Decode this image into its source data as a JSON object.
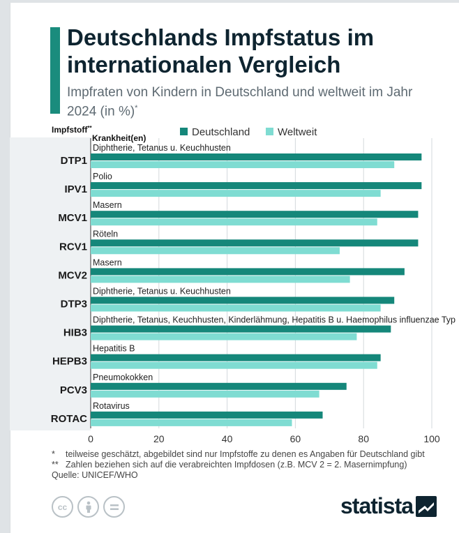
{
  "title": "Deutschlands Impfstatus im internationalen Vergleich",
  "subtitle": "Impfraten von Kindern in Deutschland und weltweit im Jahr 2024 (in %)",
  "subtitle_mark": "*",
  "header": {
    "impfstoff": "Impfstoff",
    "impfstoff_mark": "**",
    "krankheit": "Krankheit(en)"
  },
  "colors": {
    "accent": "#1a8c7d",
    "deutschland": "#15877a",
    "weltweit": "#7fdcd2",
    "title": "#0e2430"
  },
  "chart_data": {
    "type": "bar",
    "orientation": "horizontal",
    "title": "Deutschlands Impfstatus im internationalen Vergleich",
    "xlim": [
      0,
      100
    ],
    "ticks": [
      0,
      20,
      40,
      60,
      80,
      100
    ],
    "grid": true,
    "legend_position": "top",
    "categories": [
      "DTP1",
      "IPV1",
      "MCV1",
      "RCV1",
      "MCV2",
      "DTP3",
      "HIB3",
      "HEPB3",
      "PCV3",
      "ROTAC"
    ],
    "diseases": [
      "Diphtherie, Tetanus u. Keuchhusten",
      "Polio",
      "Masern",
      "Röteln",
      "Masern",
      "Diphtherie, Tetanus u. Keuchhusten",
      "Diphtherie, Tetanus, Keuchhusten, Kinderlähmung, Hepatitis B u. Haemophilus influenzae Typ",
      "Hepatitis B",
      "Pneumokokken",
      "Rotavirus"
    ],
    "series": [
      {
        "name": "Deutschland",
        "values": [
          97,
          97,
          96,
          96,
          92,
          89,
          88,
          85,
          75,
          68
        ]
      },
      {
        "name": "Weltweit",
        "values": [
          89,
          85,
          84,
          73,
          76,
          85,
          78,
          84,
          67,
          59
        ]
      }
    ]
  },
  "footnotes": [
    {
      "mark": "*",
      "text": "teilweise geschätzt, abgebildet sind nur Impfstoffe zu denen es Angaben für Deutschland gibt"
    },
    {
      "mark": "**",
      "text": "Zahlen beziehen sich auf die verabreichten Impfdosen (z.B. MCV 2 = 2. Masernimpfung)"
    }
  ],
  "source": "Quelle: UNICEF/WHO",
  "license_icons": [
    "cc-icon",
    "by-person-icon",
    "nd-equals-icon"
  ],
  "brand": "statista"
}
